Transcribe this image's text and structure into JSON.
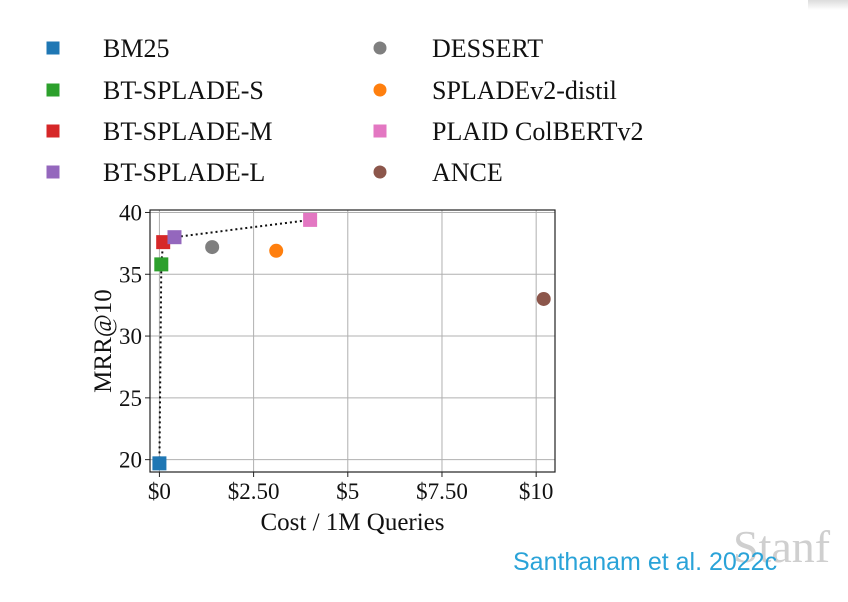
{
  "chart_data": {
    "type": "scatter",
    "xlabel": "Cost / 1M Queries",
    "ylabel": "MRR@10",
    "xlim": [
      -0.25,
      10.5
    ],
    "ylim": [
      19,
      40.2
    ],
    "x_ticks": [
      0,
      2.5,
      5,
      7.5,
      10
    ],
    "x_tick_labels": [
      "$0",
      "$2.50",
      "$5",
      "$7.50",
      "$10"
    ],
    "y_ticks": [
      20,
      25,
      30,
      35,
      40
    ],
    "y_tick_labels": [
      "20",
      "25",
      "30",
      "35",
      "40"
    ],
    "grid": true,
    "legend_placement": "top, two columns",
    "series": [
      {
        "name": "BM25",
        "marker": "square",
        "color": "#1f77b4",
        "x": 0.0,
        "y": 19.7
      },
      {
        "name": "BT-SPLADE-S",
        "marker": "square",
        "color": "#2ca02c",
        "x": 0.05,
        "y": 35.8
      },
      {
        "name": "BT-SPLADE-M",
        "marker": "square",
        "color": "#d62728",
        "x": 0.1,
        "y": 37.6
      },
      {
        "name": "BT-SPLADE-L",
        "marker": "square",
        "color": "#9467bd",
        "x": 0.4,
        "y": 38.0
      },
      {
        "name": "DESSERT",
        "marker": "circle",
        "color": "#7f7f7f",
        "x": 1.4,
        "y": 37.2
      },
      {
        "name": "SPLADEv2-distil",
        "marker": "circle",
        "color": "#ff7f0e",
        "x": 3.1,
        "y": 36.9
      },
      {
        "name": "PLAID ColBERTv2",
        "marker": "square",
        "color": "#e377c2",
        "x": 4.0,
        "y": 39.4
      },
      {
        "name": "ANCE",
        "marker": "circle",
        "color": "#8c564b",
        "x": 10.2,
        "y": 33.0
      }
    ],
    "frontier": [
      {
        "x": 0.0,
        "y": 19.7
      },
      {
        "x": 0.05,
        "y": 35.8
      },
      {
        "x": 0.1,
        "y": 37.6
      },
      {
        "x": 0.4,
        "y": 38.0
      },
      {
        "x": 4.0,
        "y": 39.4
      }
    ]
  },
  "citation": "Santhanam et al. 2022c",
  "watermark": "Stanf"
}
